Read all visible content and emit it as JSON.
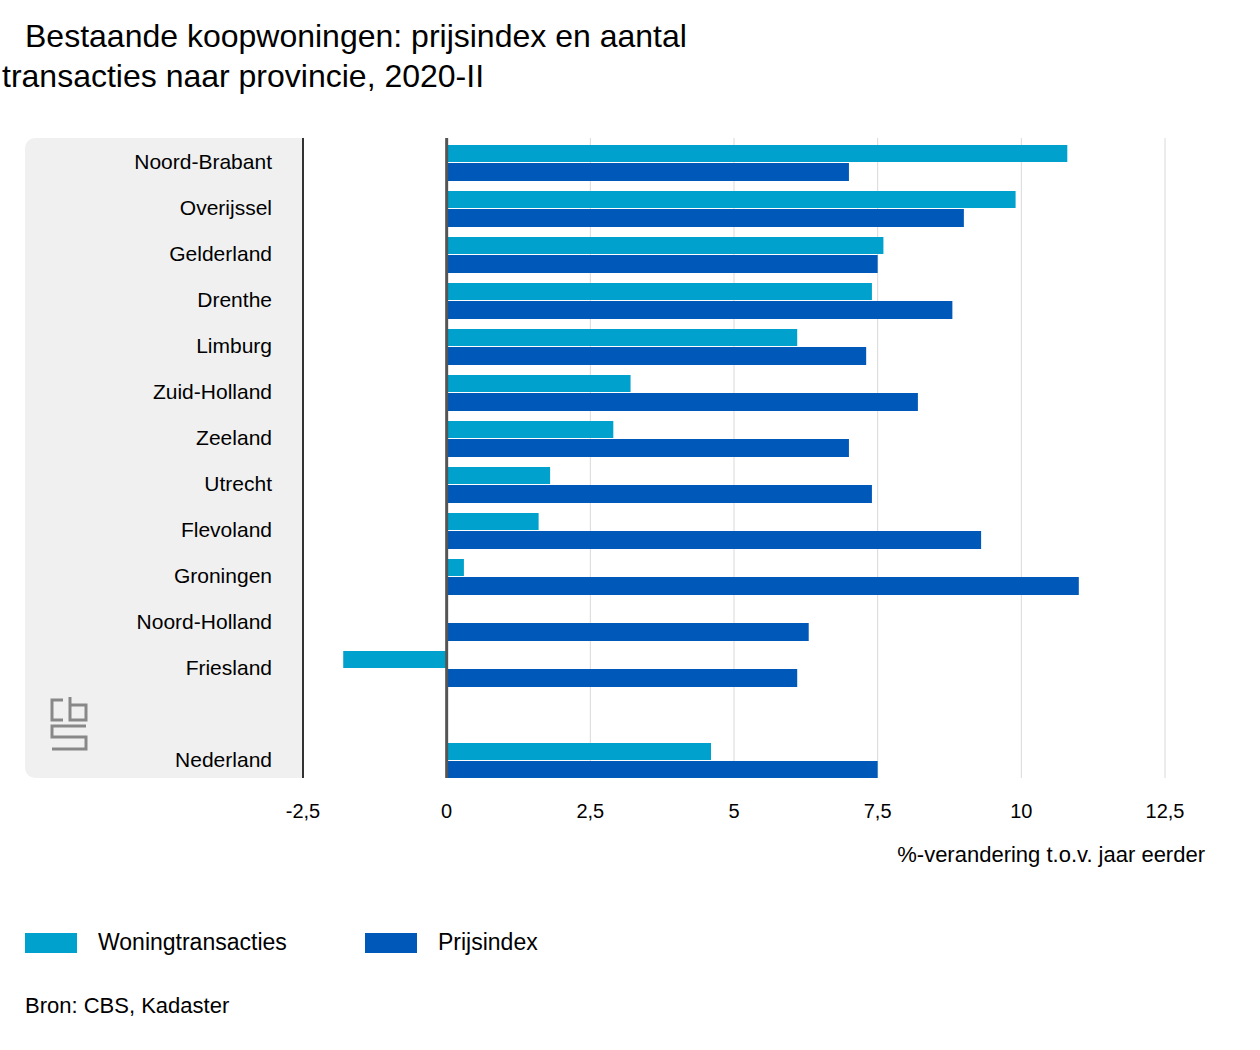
{
  "chart_data": {
    "type": "bar",
    "orientation": "horizontal",
    "title": "Bestaande koopwoningen: prijsindex en aantal transacties naar provincie, 2020-II",
    "xlabel": "%-verandering t.o.v. jaar eerder",
    "source": "Bron: CBS, Kadaster",
    "categories": [
      "Noord-Brabant",
      "Overijssel",
      "Gelderland",
      "Drenthe",
      "Limburg",
      "Zuid-Holland",
      "Zeeland",
      "Utrecht",
      "Flevoland",
      "Groningen",
      "Noord-Holland",
      "Friesland",
      null,
      "Nederland"
    ],
    "series": [
      {
        "name": "Woningtransacties",
        "color": "#00a1cd",
        "values": [
          10.8,
          9.9,
          7.6,
          7.4,
          6.1,
          3.2,
          2.9,
          1.8,
          1.6,
          0.3,
          0,
          -1.8,
          null,
          4.6
        ]
      },
      {
        "name": "Prijsindex",
        "color": "#0058b8",
        "values": [
          7.0,
          9.0,
          7.5,
          8.8,
          7.3,
          8.2,
          7.0,
          7.4,
          9.3,
          11.0,
          6.3,
          6.1,
          null,
          7.5
        ]
      }
    ],
    "xlim": [
      -2.5,
      12.5
    ],
    "xticks": [
      {
        "value": -2.5,
        "label": "-2,5"
      },
      0,
      {
        "value": 2.5,
        "label": "2,5"
      },
      5,
      {
        "value": 7.5,
        "label": "7,5"
      },
      10,
      {
        "value": 12.5,
        "label": "12,5"
      }
    ],
    "grid": true,
    "legend": "bottom"
  }
}
